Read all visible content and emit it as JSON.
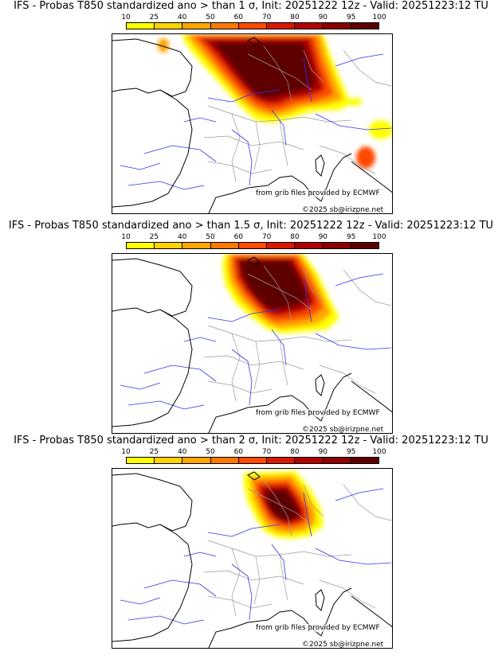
{
  "colors": {
    "bins": [
      "#ffff00",
      "#ffd200",
      "#ffa600",
      "#ff7800",
      "#ff4a00",
      "#d81800",
      "#b00000",
      "#8a0000",
      "#5c0000"
    ],
    "coast": "#000000",
    "rivers": "#3333ee",
    "borders": "#9a9a9a"
  },
  "colorbar": {
    "ticks": [
      "10",
      "25",
      "40",
      "50",
      "60",
      "70",
      "80",
      "90",
      "95",
      "100"
    ]
  },
  "panels": [
    {
      "title": "IFS - Probas T850  standardized ano > than 1 σ, Init: 20251222 12z - Valid: 20251223:12 TU",
      "credit_grib": "from grib files provided by ECMWF",
      "credit_copy": "©2025 sb@irizpne.net"
    },
    {
      "title": "IFS - Probas T850  standardized ano > than 1.5 σ, Init: 20251222 12z - Valid: 20251223:12 TU",
      "credit_grib": "from grib files provided by ECMWF",
      "credit_copy": "©2025 sb@irizpne.net"
    },
    {
      "title": "IFS - Probas T850  standardized ano > than 2 σ, Init: 20251222 12z - Valid: 20251223:12 TU",
      "credit_grib": "from grib files provided by ECMWF",
      "credit_copy": "©2025 sb@irizpne.net"
    }
  ]
}
